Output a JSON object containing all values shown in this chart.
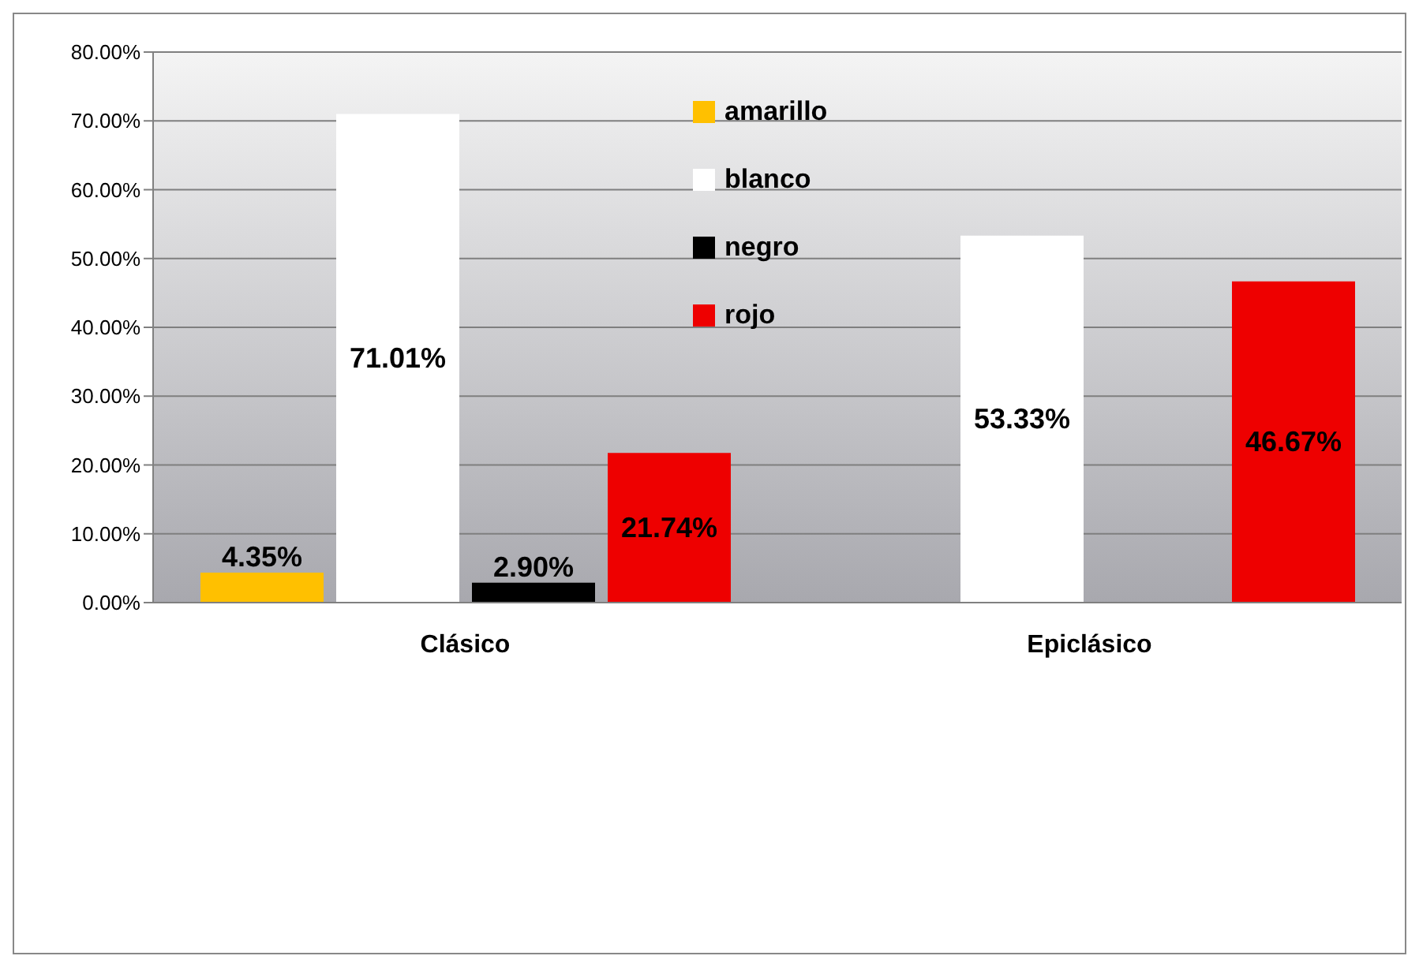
{
  "chart_data": {
    "type": "bar",
    "categories": [
      "Clásico",
      "Epiclásico"
    ],
    "series": [
      {
        "name": "amarillo",
        "color": "#ffc000",
        "values": [
          4.35,
          null
        ],
        "value_labels": [
          "4.35%",
          null
        ]
      },
      {
        "name": "blanco",
        "color": "#ffffff",
        "values": [
          71.01,
          53.33
        ],
        "value_labels": [
          "71.01%",
          "53.33%"
        ]
      },
      {
        "name": "negro",
        "color": "#000000",
        "values": [
          2.9,
          null
        ],
        "value_labels": [
          "2.90%",
          null
        ]
      },
      {
        "name": "rojo",
        "color": "#ee0000",
        "values": [
          21.74,
          46.67
        ],
        "value_labels": [
          "21.74%",
          "46.67%"
        ]
      }
    ],
    "ylim": [
      0,
      80
    ],
    "yticks": [
      {
        "value": 0,
        "label": "0.00%"
      },
      {
        "value": 10,
        "label": "10.00%"
      },
      {
        "value": 20,
        "label": "20.00%"
      },
      {
        "value": 30,
        "label": "30.00%"
      },
      {
        "value": 40,
        "label": "40.00%"
      },
      {
        "value": 50,
        "label": "50.00%"
      },
      {
        "value": 60,
        "label": "60.00%"
      },
      {
        "value": 70,
        "label": "70.00%"
      },
      {
        "value": 80,
        "label": "80.00%"
      }
    ],
    "grid": "y",
    "legend": "top"
  }
}
